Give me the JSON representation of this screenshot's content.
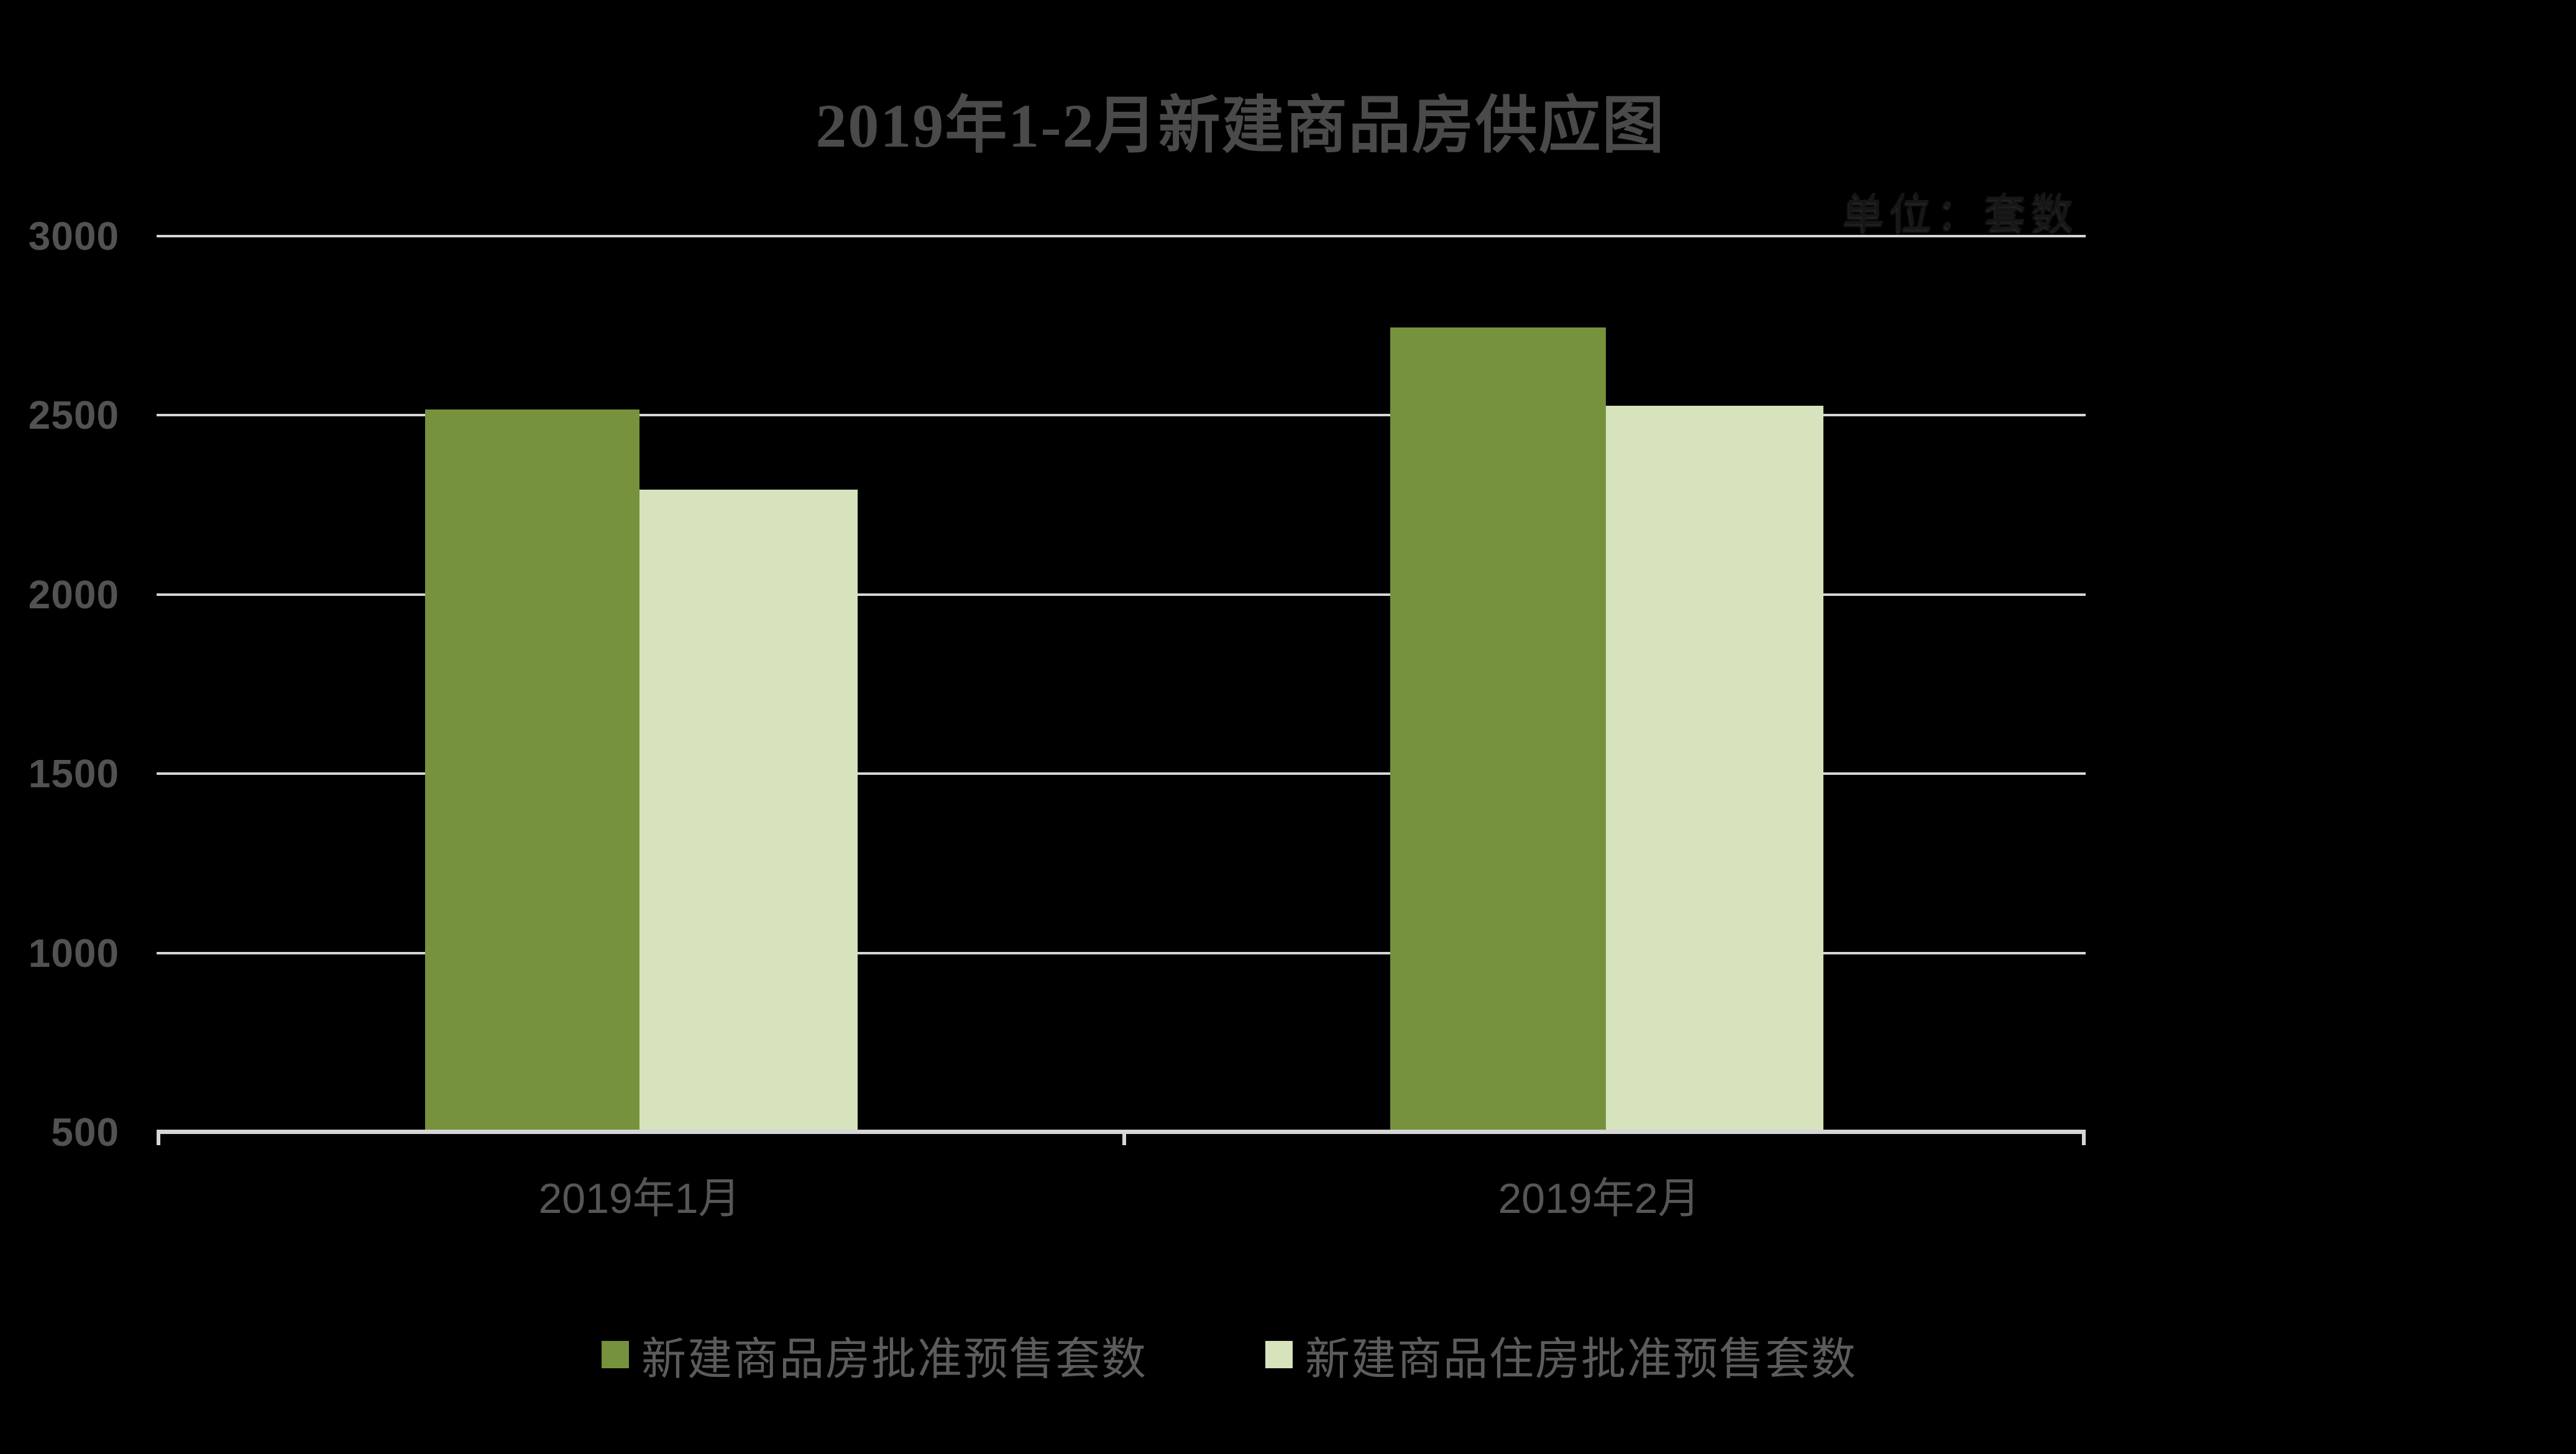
{
  "chart_data": {
    "type": "bar",
    "title": "2019年1-2月新建商品房供应图",
    "unit_note": "单位：套数",
    "categories": [
      "2019年1月",
      "2019年2月"
    ],
    "series": [
      {
        "name": "新建商品房批准预售套数",
        "color": "#76923C",
        "values": [
          2515,
          2745
        ]
      },
      {
        "name": "新建商品住房批准预售套数",
        "color": "#D6E3BC",
        "values": [
          2290,
          2525
        ]
      }
    ],
    "ylim": [
      500,
      3000
    ],
    "ytick_step": 500,
    "yticks": [
      "3000",
      "2500",
      "2000",
      "1500",
      "1000",
      "500"
    ],
    "xlabel": "",
    "ylabel": "",
    "grid": true,
    "legend_position": "bottom",
    "colors": {
      "background": "#000000",
      "gridline": "#D6D6D6",
      "axis_line": "#D6D6D6",
      "title_text": "#4A4A4A",
      "axis_text": "#555555",
      "legend_text": "#5C5C5C",
      "unit_text": "#161616"
    }
  }
}
